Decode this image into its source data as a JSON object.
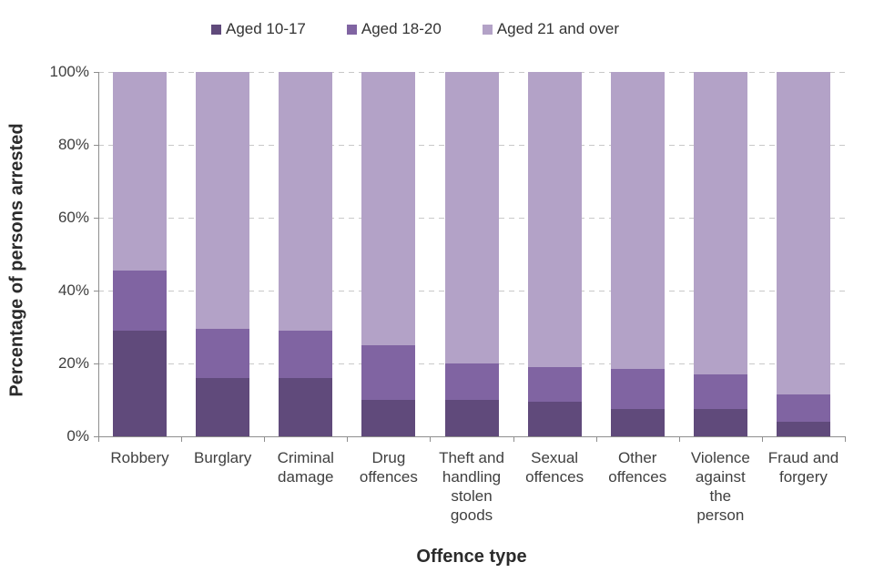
{
  "chart_data": {
    "type": "bar",
    "stacked": true,
    "xlabel": "Offence type",
    "ylabel": "Percentage of persons arrested",
    "ylim": [
      0,
      100
    ],
    "yticks": [
      0,
      20,
      40,
      60,
      80,
      100
    ],
    "ytick_labels": [
      "0%",
      "20%",
      "40%",
      "60%",
      "80%",
      "100%"
    ],
    "grid": "horizontal-dashed",
    "legend_position": "top",
    "categories": [
      "Robbery",
      "Burglary",
      "Criminal damage",
      "Drug offences",
      "Theft and handling stolen goods",
      "Sexual offences",
      "Other offences",
      "Violence against the person",
      "Fraud and forgery"
    ],
    "category_label_lines": [
      [
        "Robbery"
      ],
      [
        "Burglary"
      ],
      [
        "Criminal",
        "damage"
      ],
      [
        "Drug",
        "offences"
      ],
      [
        "Theft and",
        "handling",
        "stolen",
        "goods"
      ],
      [
        "Sexual",
        "offences"
      ],
      [
        "Other",
        "offences"
      ],
      [
        "Violence",
        "against",
        "the",
        "person"
      ],
      [
        "Fraud and",
        "forgery"
      ]
    ],
    "series": [
      {
        "name": "Aged 10-17",
        "color": "#604a7b",
        "values": [
          29,
          16,
          16,
          10,
          10,
          9.5,
          7.5,
          7.5,
          4
        ]
      },
      {
        "name": "Aged 18-20",
        "color": "#8064a2",
        "values": [
          16.5,
          13.5,
          13,
          15,
          10,
          9.5,
          11,
          9.5,
          7.5
        ]
      },
      {
        "name": "Aged 21 and over",
        "color": "#b3a2c7",
        "values": [
          54.5,
          70.5,
          71,
          75,
          80,
          81,
          81.5,
          83,
          88.5
        ]
      }
    ]
  },
  "style_colors": {
    "axis_line": "#8e8e8e",
    "gridline": "#c9c9c9",
    "text": "#404040"
  }
}
